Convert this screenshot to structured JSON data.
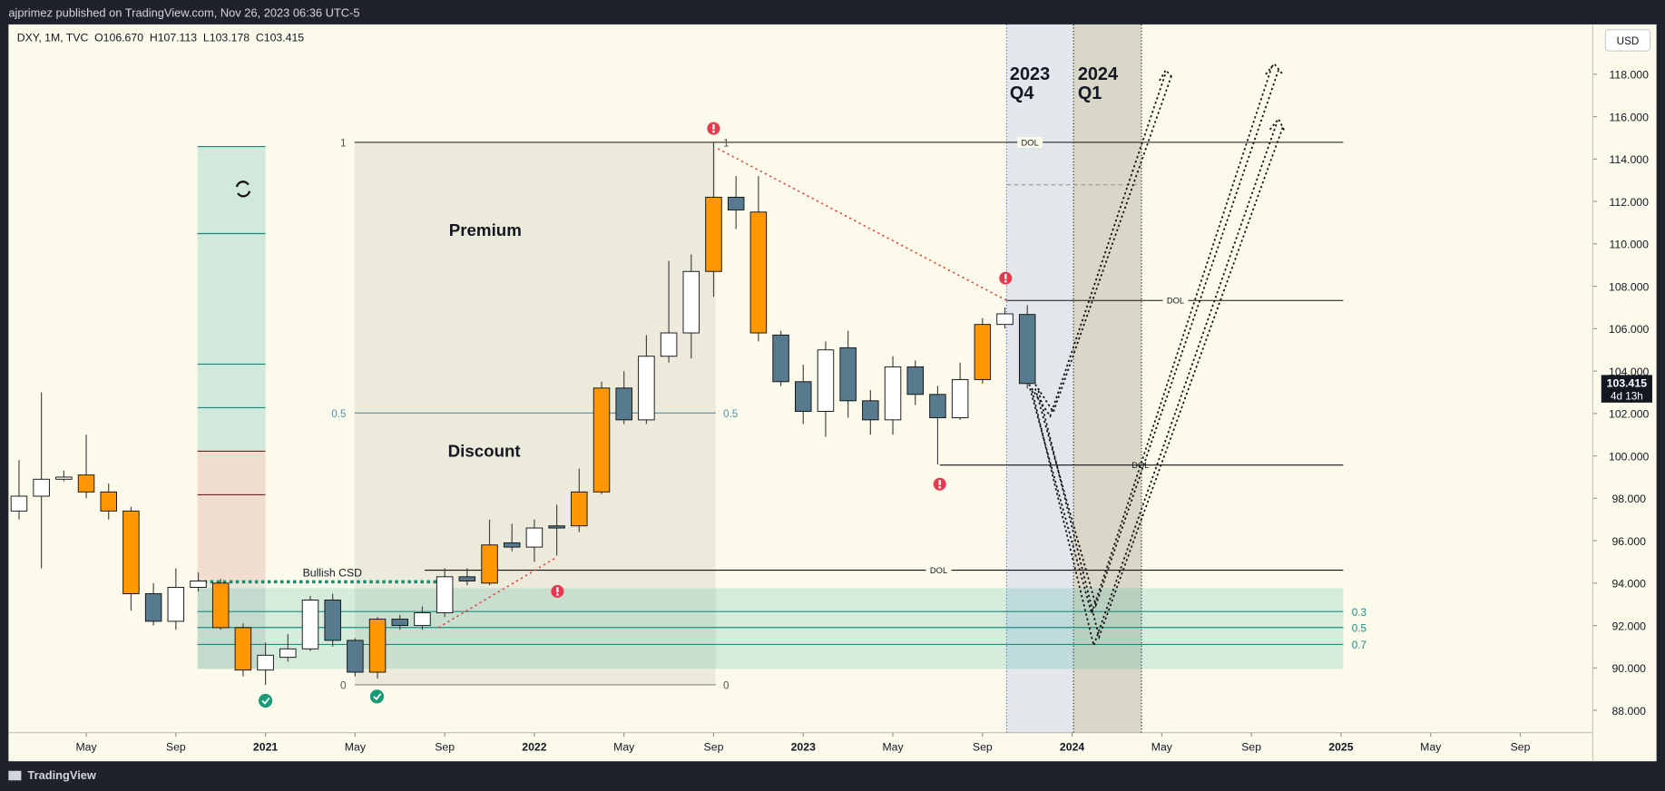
{
  "header": "ajprimez published on TradingView.com, Nov 26, 2023 06:36 UTC-5",
  "footer": "TradingView",
  "chart_data": {
    "type": "candlestick",
    "legend": "DXY, 1M, TVC  O106.670  H107.113  L103.178  C103.415",
    "currency": "USD",
    "last_price_label": "103.415",
    "countdown": "4d 13h",
    "x": [
      "2020-02",
      "2020-03",
      "2020-04",
      "2020-05",
      "2020-06",
      "2020-07",
      "2020-08",
      "2020-09",
      "2020-10",
      "2020-11",
      "2020-12",
      "2021-01",
      "2021-02",
      "2021-03",
      "2021-04",
      "2021-05",
      "2021-06",
      "2021-07",
      "2021-08",
      "2021-09",
      "2021-10",
      "2021-11",
      "2021-12",
      "2022-01",
      "2022-02",
      "2022-03",
      "2022-04",
      "2022-05",
      "2022-06",
      "2022-07",
      "2022-08",
      "2022-09",
      "2022-10",
      "2022-11",
      "2022-12",
      "2023-01",
      "2023-02",
      "2023-03",
      "2023-04",
      "2023-05",
      "2023-06",
      "2023-07",
      "2023-08",
      "2023-09",
      "2023-10",
      "2023-11"
    ],
    "open": [
      97.4,
      98.1,
      98.9,
      99.1,
      98.3,
      97.4,
      93.5,
      92.2,
      93.8,
      94.0,
      91.9,
      89.9,
      90.5,
      90.9,
      93.2,
      91.3,
      89.8,
      92.3,
      92.0,
      92.6,
      94.3,
      94.0,
      95.9,
      95.7,
      96.6,
      96.7,
      98.3,
      103.2,
      101.7,
      104.7,
      105.8,
      108.7,
      112.2,
      111.5,
      105.7,
      103.5,
      102.1,
      105.1,
      102.6,
      101.7,
      104.2,
      102.9,
      101.8,
      103.6,
      106.2,
      106.67
    ],
    "high": [
      99.8,
      103.0,
      99.3,
      101.0,
      98.7,
      97.6,
      94.0,
      94.7,
      94.5,
      94.2,
      92.1,
      91.2,
      91.6,
      93.4,
      93.5,
      91.4,
      92.4,
      92.5,
      92.9,
      94.7,
      94.7,
      97.0,
      96.8,
      97.0,
      97.7,
      99.4,
      103.5,
      104.0,
      105.7,
      109.2,
      109.5,
      114.8,
      113.2,
      113.2,
      105.9,
      104.3,
      105.4,
      105.9,
      103.1,
      104.7,
      104.5,
      103.3,
      104.4,
      106.5,
      107.0,
      107.113
    ],
    "low": [
      97.0,
      94.7,
      98.8,
      98.0,
      97.0,
      92.7,
      92.0,
      91.8,
      93.6,
      91.8,
      89.6,
      89.2,
      90.3,
      90.8,
      91.0,
      89.6,
      89.5,
      91.8,
      91.8,
      92.4,
      93.9,
      93.9,
      95.5,
      95.0,
      95.3,
      96.4,
      98.2,
      101.5,
      101.5,
      104.4,
      104.6,
      107.5,
      110.7,
      105.4,
      103.3,
      101.5,
      100.9,
      101.8,
      101.0,
      101.0,
      102.4,
      99.6,
      101.7,
      103.4,
      106.0,
      103.178
    ],
    "close": [
      98.1,
      98.9,
      99.0,
      98.3,
      97.4,
      93.5,
      92.2,
      93.8,
      94.1,
      91.9,
      89.9,
      90.6,
      90.9,
      93.2,
      91.3,
      89.8,
      92.3,
      92.0,
      92.6,
      94.3,
      94.1,
      95.8,
      95.7,
      96.6,
      96.7,
      98.3,
      103.2,
      101.7,
      104.7,
      105.8,
      108.7,
      112.2,
      111.6,
      105.8,
      103.5,
      102.1,
      105.0,
      102.6,
      101.7,
      104.2,
      102.9,
      101.8,
      103.6,
      106.2,
      106.7,
      103.415
    ],
    "colors": [
      "#ffffff",
      "#ffffff",
      "#ffffff",
      "#ff9800",
      "#ff9800",
      "#ff9800",
      "#577a8e",
      "#ffffff",
      "#ffffff",
      "#ff9800",
      "#ff9800",
      "#ffffff",
      "#ffffff",
      "#ffffff",
      "#577a8e",
      "#577a8e",
      "#ff9800",
      "#577a8e",
      "#ffffff",
      "#ffffff",
      "#577a8e",
      "#ff9800",
      "#577a8e",
      "#ffffff",
      "#577a8e",
      "#ff9800",
      "#ff9800",
      "#577a8e",
      "#ffffff",
      "#ffffff",
      "#ffffff",
      "#ff9800",
      "#577a8e",
      "#ff9800",
      "#577a8e",
      "#577a8e",
      "#ffffff",
      "#577a8e",
      "#577a8e",
      "#ffffff",
      "#577a8e",
      "#577a8e",
      "#ffffff",
      "#ff9800",
      "#ffffff",
      "#577a8e"
    ],
    "xlim": [
      "2020-01",
      "2025-12"
    ],
    "xticks": [
      {
        "value": "2020-05",
        "label": "May"
      },
      {
        "value": "2020-09",
        "label": "Sep"
      },
      {
        "value": "2021-01",
        "label": "2021"
      },
      {
        "value": "2021-05",
        "label": "May"
      },
      {
        "value": "2021-09",
        "label": "Sep"
      },
      {
        "value": "2022-01",
        "label": "2022"
      },
      {
        "value": "2022-05",
        "label": "May"
      },
      {
        "value": "2022-09",
        "label": "Sep"
      },
      {
        "value": "2023-01",
        "label": "2023"
      },
      {
        "value": "2023-05",
        "label": "May"
      },
      {
        "value": "2023-09",
        "label": "Sep"
      },
      {
        "value": "2024-01",
        "label": "2024"
      },
      {
        "value": "2024-05",
        "label": "May"
      },
      {
        "value": "2024-09",
        "label": "Sep"
      },
      {
        "value": "2025-01",
        "label": "2025"
      },
      {
        "value": "2025-05",
        "label": "May"
      },
      {
        "value": "2025-09",
        "label": "Sep"
      }
    ],
    "ylim": [
      86.95,
      120.35
    ],
    "yticks": [
      {
        "value": 88,
        "label": "88.000"
      },
      {
        "value": 90,
        "label": "90.000"
      },
      {
        "value": 92,
        "label": "92.000"
      },
      {
        "value": 94,
        "label": "94.000"
      },
      {
        "value": 96,
        "label": "96.000"
      },
      {
        "value": 98,
        "label": "98.000"
      },
      {
        "value": 100,
        "label": "100.000"
      },
      {
        "value": 102,
        "label": "102.000"
      },
      {
        "value": 104,
        "label": "104.000"
      },
      {
        "value": 106,
        "label": "106.000"
      },
      {
        "value": 108,
        "label": "108.000"
      },
      {
        "value": 110,
        "label": "110.000"
      },
      {
        "value": 112,
        "label": "112.000"
      },
      {
        "value": 114,
        "label": "114.000"
      },
      {
        "value": 116,
        "label": "116.000"
      },
      {
        "value": 118,
        "label": "118.000"
      }
    ],
    "annotations": {
      "premium": "Premium",
      "discount": "Discount",
      "bullish_csd": "Bullish CSD",
      "q4": [
        "2023",
        "Q4"
      ],
      "q1": [
        "2024",
        "Q1"
      ],
      "dol": [
        "DOL",
        "DOL",
        "DOL",
        "DOL"
      ],
      "fib_left": [
        1,
        0.5,
        0
      ],
      "fib_right": [
        1,
        0.5,
        0
      ],
      "zone_levels": [
        0.3,
        0.5,
        0.7
      ]
    }
  }
}
